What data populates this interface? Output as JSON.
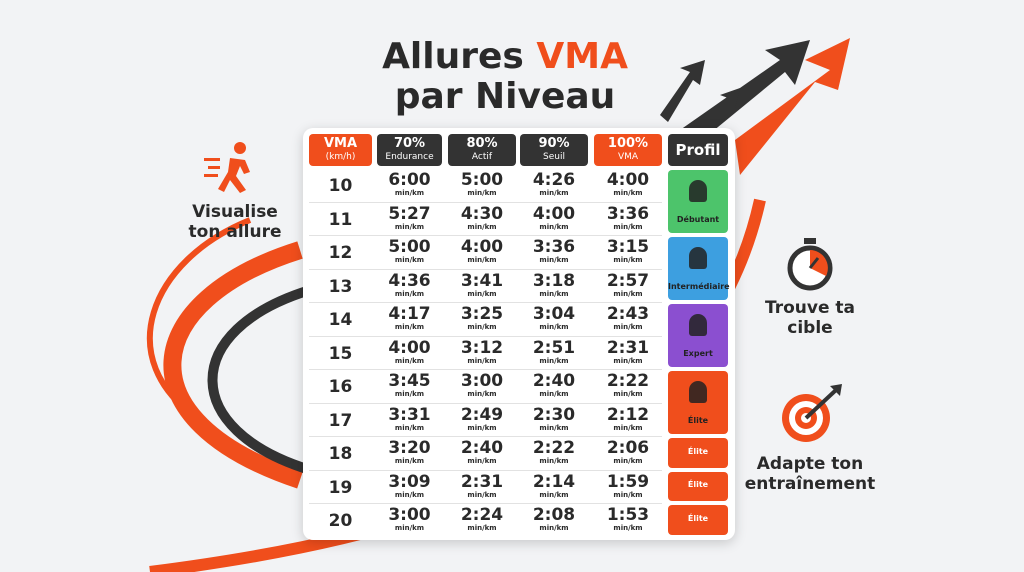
{
  "header": {
    "title_start": "Allures",
    "title_highlight": "VMA",
    "title_line2": "par Niveau"
  },
  "side": {
    "left": "Visualise ton allure",
    "right_top": "Trouve ta cible",
    "right_bottom": "Adapte ton entraînement"
  },
  "table": {
    "headers": [
      {
        "top": "VMA",
        "bottom": "(km/h)"
      },
      {
        "top": "70%",
        "bottom": "Endurance"
      },
      {
        "top": "80%",
        "bottom": "Actif"
      },
      {
        "top": "90%",
        "bottom": "Seuil"
      },
      {
        "top": "100%",
        "bottom": "VMA"
      },
      {
        "top": "Profil"
      }
    ],
    "pace_unit": "min/km",
    "rows": [
      {
        "vma": 10,
        "paces": [
          "6:00",
          "5:00",
          "4:26",
          "4:00"
        ]
      },
      {
        "vma": 11,
        "paces": [
          "5:27",
          "4:30",
          "4:00",
          "3:36"
        ]
      },
      {
        "vma": 12,
        "paces": [
          "5:00",
          "4:00",
          "3:36",
          "3:15"
        ]
      },
      {
        "vma": 13,
        "paces": [
          "4:36",
          "3:41",
          "3:18",
          "2:57"
        ]
      },
      {
        "vma": 14,
        "paces": [
          "4:17",
          "3:25",
          "3:04",
          "2:43"
        ]
      },
      {
        "vma": 15,
        "paces": [
          "4:00",
          "3:12",
          "2:51",
          "2:31"
        ]
      },
      {
        "vma": 16,
        "paces": [
          "3:45",
          "3:00",
          "2:40",
          "2:22"
        ]
      },
      {
        "vma": 17,
        "paces": [
          "3:31",
          "2:49",
          "2:30",
          "2:12"
        ]
      },
      {
        "vma": 18,
        "paces": [
          "3:20",
          "2:40",
          "2:22",
          "2:06"
        ]
      },
      {
        "vma": 19,
        "paces": [
          "3:09",
          "2:31",
          "2:14",
          "1:59"
        ]
      },
      {
        "vma": 20,
        "paces": [
          "3:00",
          "2:24",
          "2:08",
          "1:53"
        ]
      }
    ],
    "profiles": [
      {
        "label": "Débutant",
        "rows": 2,
        "color": "#4dc46b"
      },
      {
        "label": "Intermédiaire",
        "rows": 2,
        "color": "#3d9fe0"
      },
      {
        "label": "Expert",
        "rows": 2,
        "color": "#8b4fd0"
      },
      {
        "label": "Élite",
        "rows": 2,
        "color": "#f04e1c"
      },
      {
        "label": "Élite",
        "rows": 1,
        "color": "#f04e1c"
      },
      {
        "label": "Élite",
        "rows": 1,
        "color": "#f04e1c"
      },
      {
        "label": "Élite",
        "rows": 1,
        "color": "#f04e1c"
      }
    ]
  }
}
